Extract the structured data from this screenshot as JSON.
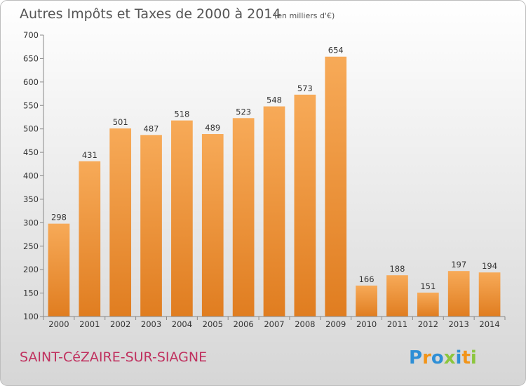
{
  "title": "Autres Impôts et Taxes de 2000 à 2014",
  "unit": "(en milliers d'€)",
  "commune": "SAINT-CéZAIRE-SUR-SIAGNE",
  "brand": {
    "letters": [
      "P",
      "r",
      "o",
      "x",
      "i",
      "t",
      "i"
    ],
    "colors": [
      "#2e8fd6",
      "#f29418",
      "#2e8fd6",
      "#8cc63e",
      "#2e8fd6",
      "#f29418",
      "#8cc63e"
    ]
  },
  "colors": {
    "bar_top": "#f7aa58",
    "bar_bottom": "#e07d20",
    "bg_top": "#ffffff",
    "bg_bottom": "#d6d6d6",
    "commune_text": "#c0305e"
  },
  "chart_data": {
    "type": "bar",
    "categories": [
      "2000",
      "2001",
      "2002",
      "2003",
      "2004",
      "2005",
      "2006",
      "2007",
      "2008",
      "2009",
      "2010",
      "2011",
      "2012",
      "2013",
      "2014"
    ],
    "values": [
      298,
      431,
      501,
      487,
      518,
      489,
      523,
      548,
      573,
      654,
      166,
      188,
      151,
      197,
      194
    ],
    "value_labels": [
      "298",
      "431",
      "501",
      "487",
      "518",
      "489",
      "523",
      "548",
      "573",
      "654",
      "166",
      "188",
      "151",
      "197",
      "194"
    ],
    "yticks": [
      "100",
      "150",
      "200",
      "250",
      "300",
      "350",
      "400",
      "450",
      "500",
      "550",
      "600",
      "650",
      "700"
    ],
    "ylim": [
      100,
      700
    ],
    "xlabel": "",
    "ylabel": "",
    "grid": false,
    "legend": "none"
  }
}
